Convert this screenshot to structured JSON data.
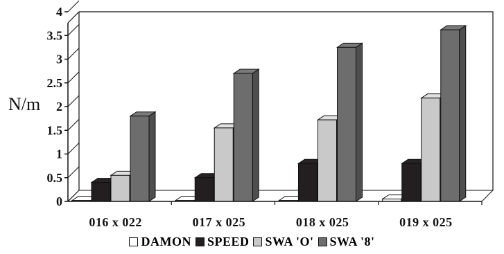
{
  "chart_data": {
    "type": "bar",
    "style": "3d-clustered-column",
    "categories": [
      "016 x 022",
      "017 x 025",
      "018 x 025",
      "019 x 025"
    ],
    "series": [
      {
        "name": "DAMON",
        "color": "#ffffff",
        "values": [
          0.02,
          0.02,
          0.02,
          0.05
        ]
      },
      {
        "name": "SPEED",
        "color": "#231f20",
        "values": [
          0.4,
          0.5,
          0.8,
          0.8
        ]
      },
      {
        "name": "SWA 'O'",
        "color": "#c9c9c9",
        "values": [
          0.55,
          1.55,
          1.72,
          2.18
        ]
      },
      {
        "name": "SWA '8'",
        "color": "#6d6d6d",
        "values": [
          1.8,
          2.7,
          3.25,
          3.62
        ]
      }
    ],
    "xlabel": "",
    "ylabel": "N/m",
    "ylim": [
      0,
      4
    ],
    "yticks": [
      "0",
      "0.5",
      "1",
      "1.5",
      "2",
      "2.5",
      "3",
      "3.5",
      "4"
    ],
    "grid": false,
    "legend_position": "bottom"
  }
}
